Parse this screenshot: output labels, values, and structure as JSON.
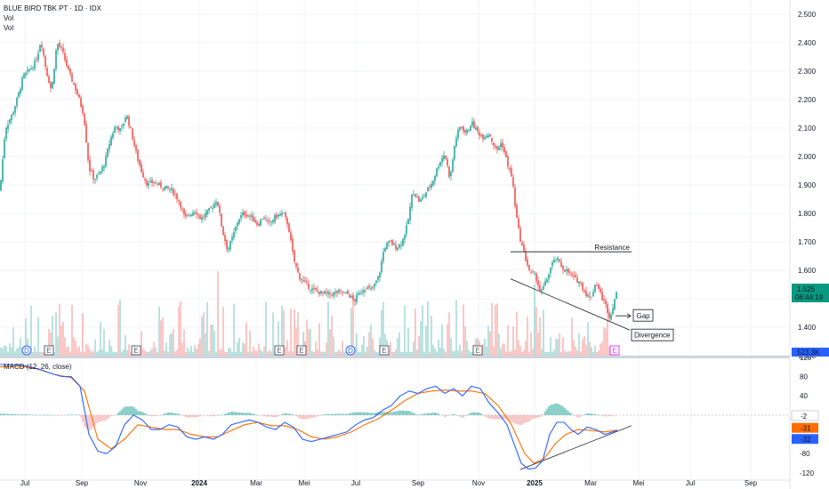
{
  "header": {
    "title": "BLUE BIRD TBK PT · 1D · IDX",
    "vol1": "Vol",
    "vol2": "Vol",
    "macd": "MACD (12, 26, close)"
  },
  "colors": {
    "up": "#26a69a",
    "down": "#ef5350",
    "macd": "#2962ff",
    "signal": "#ff6d00",
    "grid": "#f0f3fa",
    "price_tag": "#089981"
  },
  "chart_data": {
    "type": "candlestick",
    "price_axis": {
      "ylim": [
        1300,
        2550
      ],
      "ticks": [
        "2.500",
        "2.400",
        "2.300",
        "2.200",
        "2.100",
        "2.000",
        "1.900",
        "1.800",
        "1.700",
        "1.600",
        "1.500",
        "1.400",
        "1.300"
      ]
    },
    "macd_axis": {
      "ylim": [
        -135,
        118
      ],
      "ticks": [
        "120",
        "80",
        "40",
        "-80",
        "-120"
      ]
    },
    "x_labels": [
      "Jul",
      "Sep",
      "Nov",
      "2024",
      "Mar",
      "Mei",
      "Jul",
      "Sep",
      "Nov",
      "2025",
      "Mar",
      "Mei",
      "Jul",
      "Sep"
    ],
    "last_price": {
      "value": "1.525",
      "countdown": "06:44:19"
    },
    "volume_label": "523,3K",
    "macd_values": {
      "hist": "-2",
      "signal": "-31",
      "macd": "-32"
    },
    "price_path": [
      [
        0,
        1880
      ],
      [
        6,
        2100
      ],
      [
        14,
        2150
      ],
      [
        20,
        2210
      ],
      [
        26,
        2280
      ],
      [
        32,
        2300
      ],
      [
        40,
        2330
      ],
      [
        46,
        2410
      ],
      [
        52,
        2300
      ],
      [
        58,
        2230
      ],
      [
        64,
        2400
      ],
      [
        70,
        2370
      ],
      [
        78,
        2290
      ],
      [
        86,
        2230
      ],
      [
        94,
        2150
      ],
      [
        100,
        1960
      ],
      [
        106,
        1920
      ],
      [
        112,
        1940
      ],
      [
        118,
        1980
      ],
      [
        124,
        2060
      ],
      [
        130,
        2110
      ],
      [
        136,
        2090
      ],
      [
        142,
        2150
      ],
      [
        148,
        2080
      ],
      [
        154,
        2000
      ],
      [
        160,
        1940
      ],
      [
        166,
        1900
      ],
      [
        172,
        1910
      ],
      [
        178,
        1900
      ],
      [
        186,
        1890
      ],
      [
        194,
        1880
      ],
      [
        202,
        1840
      ],
      [
        208,
        1780
      ],
      [
        214,
        1800
      ],
      [
        220,
        1810
      ],
      [
        226,
        1780
      ],
      [
        232,
        1800
      ],
      [
        238,
        1820
      ],
      [
        244,
        1850
      ],
      [
        250,
        1740
      ],
      [
        256,
        1670
      ],
      [
        262,
        1720
      ],
      [
        268,
        1780
      ],
      [
        274,
        1800
      ],
      [
        282,
        1790
      ],
      [
        290,
        1760
      ],
      [
        296,
        1790
      ],
      [
        302,
        1760
      ],
      [
        310,
        1790
      ],
      [
        318,
        1800
      ],
      [
        324,
        1760
      ],
      [
        330,
        1640
      ],
      [
        336,
        1580
      ],
      [
        344,
        1550
      ],
      [
        352,
        1530
      ],
      [
        362,
        1520
      ],
      [
        372,
        1515
      ],
      [
        382,
        1525
      ],
      [
        392,
        1515
      ],
      [
        398,
        1490
      ],
      [
        404,
        1520
      ],
      [
        410,
        1540
      ],
      [
        418,
        1530
      ],
      [
        426,
        1580
      ],
      [
        432,
        1680
      ],
      [
        438,
        1700
      ],
      [
        446,
        1680
      ],
      [
        452,
        1700
      ],
      [
        458,
        1760
      ],
      [
        464,
        1880
      ],
      [
        472,
        1840
      ],
      [
        478,
        1870
      ],
      [
        486,
        1910
      ],
      [
        494,
        1980
      ],
      [
        500,
        2010
      ],
      [
        506,
        1920
      ],
      [
        512,
        2060
      ],
      [
        518,
        2110
      ],
      [
        524,
        2080
      ],
      [
        530,
        2120
      ],
      [
        536,
        2090
      ],
      [
        542,
        2070
      ],
      [
        550,
        2080
      ],
      [
        558,
        2020
      ],
      [
        564,
        2050
      ],
      [
        570,
        1980
      ],
      [
        576,
        1920
      ],
      [
        580,
        1800
      ],
      [
        584,
        1720
      ],
      [
        590,
        1650
      ],
      [
        596,
        1590
      ],
      [
        602,
        1580
      ],
      [
        608,
        1520
      ],
      [
        614,
        1560
      ],
      [
        620,
        1620
      ],
      [
        626,
        1640
      ],
      [
        632,
        1610
      ],
      [
        640,
        1590
      ],
      [
        646,
        1570
      ],
      [
        652,
        1560
      ],
      [
        658,
        1520
      ],
      [
        664,
        1500
      ],
      [
        670,
        1560
      ],
      [
        676,
        1510
      ],
      [
        682,
        1470
      ],
      [
        686,
        1430
      ],
      [
        690,
        1490
      ],
      [
        694,
        1525
      ]
    ],
    "macd_path": [
      [
        0,
        105
      ],
      [
        15,
        105
      ],
      [
        30,
        102
      ],
      [
        45,
        95
      ],
      [
        60,
        85
      ],
      [
        70,
        80
      ],
      [
        80,
        80
      ],
      [
        90,
        60
      ],
      [
        100,
        -40
      ],
      [
        110,
        -75
      ],
      [
        120,
        -80
      ],
      [
        130,
        -65
      ],
      [
        140,
        -20
      ],
      [
        150,
        0
      ],
      [
        160,
        -10
      ],
      [
        170,
        -30
      ],
      [
        180,
        -30
      ],
      [
        190,
        -20
      ],
      [
        200,
        -25
      ],
      [
        210,
        -45
      ],
      [
        220,
        -50
      ],
      [
        230,
        -45
      ],
      [
        240,
        -50
      ],
      [
        250,
        -40
      ],
      [
        260,
        -20
      ],
      [
        270,
        -15
      ],
      [
        280,
        -10
      ],
      [
        290,
        -15
      ],
      [
        300,
        -25
      ],
      [
        310,
        -30
      ],
      [
        320,
        -15
      ],
      [
        330,
        -25
      ],
      [
        340,
        -50
      ],
      [
        350,
        -55
      ],
      [
        360,
        -50
      ],
      [
        370,
        -45
      ],
      [
        380,
        -40
      ],
      [
        390,
        -35
      ],
      [
        400,
        -20
      ],
      [
        410,
        -10
      ],
      [
        420,
        -5
      ],
      [
        430,
        10
      ],
      [
        440,
        20
      ],
      [
        450,
        40
      ],
      [
        460,
        50
      ],
      [
        470,
        45
      ],
      [
        480,
        55
      ],
      [
        490,
        60
      ],
      [
        500,
        45
      ],
      [
        510,
        55
      ],
      [
        520,
        40
      ],
      [
        530,
        60
      ],
      [
        540,
        55
      ],
      [
        550,
        25
      ],
      [
        560,
        5
      ],
      [
        570,
        -20
      ],
      [
        578,
        -60
      ],
      [
        586,
        -100
      ],
      [
        594,
        -112
      ],
      [
        602,
        -110
      ],
      [
        610,
        -95
      ],
      [
        618,
        -40
      ],
      [
        626,
        -15
      ],
      [
        634,
        -15
      ],
      [
        642,
        -30
      ],
      [
        650,
        -40
      ],
      [
        660,
        -25
      ],
      [
        670,
        -30
      ],
      [
        680,
        -40
      ],
      [
        694,
        -32
      ]
    ],
    "signal_path": [
      [
        0,
        100
      ],
      [
        20,
        102
      ],
      [
        40,
        97
      ],
      [
        60,
        85
      ],
      [
        80,
        78
      ],
      [
        95,
        50
      ],
      [
        110,
        -50
      ],
      [
        125,
        -70
      ],
      [
        140,
        -50
      ],
      [
        155,
        -20
      ],
      [
        170,
        -25
      ],
      [
        185,
        -30
      ],
      [
        200,
        -30
      ],
      [
        215,
        -40
      ],
      [
        230,
        -45
      ],
      [
        245,
        -45
      ],
      [
        260,
        -32
      ],
      [
        275,
        -20
      ],
      [
        290,
        -15
      ],
      [
        305,
        -22
      ],
      [
        320,
        -22
      ],
      [
        335,
        -30
      ],
      [
        350,
        -45
      ],
      [
        365,
        -50
      ],
      [
        380,
        -45
      ],
      [
        395,
        -35
      ],
      [
        410,
        -20
      ],
      [
        425,
        -8
      ],
      [
        440,
        10
      ],
      [
        455,
        30
      ],
      [
        470,
        45
      ],
      [
        485,
        50
      ],
      [
        500,
        52
      ],
      [
        515,
        50
      ],
      [
        530,
        50
      ],
      [
        545,
        45
      ],
      [
        560,
        20
      ],
      [
        575,
        -20
      ],
      [
        590,
        -80
      ],
      [
        600,
        -100
      ],
      [
        612,
        -90
      ],
      [
        624,
        -60
      ],
      [
        636,
        -40
      ],
      [
        650,
        -30
      ],
      [
        665,
        -32
      ],
      [
        680,
        -35
      ],
      [
        694,
        -31
      ]
    ],
    "annotations": [
      {
        "text": "Resistance",
        "kind": "line",
        "from": [
          574,
          1665
        ],
        "to": [
          710,
          1665
        ]
      },
      {
        "text": "Divergence",
        "kind": "trendline",
        "from": [
          574,
          1570
        ],
        "to": [
          708,
          1390
        ]
      },
      {
        "text": "Gap",
        "kind": "arrow",
        "at": [
          692,
          1440
        ]
      },
      {
        "text": "",
        "kind": "macd-trendline",
        "from": [
          585,
          -113
        ],
        "to": [
          710,
          -22
        ]
      }
    ],
    "event_markers": [
      {
        "x": 30,
        "label": "D",
        "kind": "dividend"
      },
      {
        "x": 55,
        "label": "E",
        "kind": "earnings"
      },
      {
        "x": 153,
        "label": "E",
        "kind": "earnings"
      },
      {
        "x": 314,
        "label": "E",
        "kind": "earnings"
      },
      {
        "x": 339,
        "label": "E",
        "kind": "earnings"
      },
      {
        "x": 394,
        "label": "D",
        "kind": "dividend"
      },
      {
        "x": 432,
        "label": "E",
        "kind": "earnings"
      },
      {
        "x": 537,
        "label": "E",
        "kind": "earnings"
      },
      {
        "x": 691,
        "label": "E",
        "kind": "earnings-upcoming"
      }
    ]
  }
}
